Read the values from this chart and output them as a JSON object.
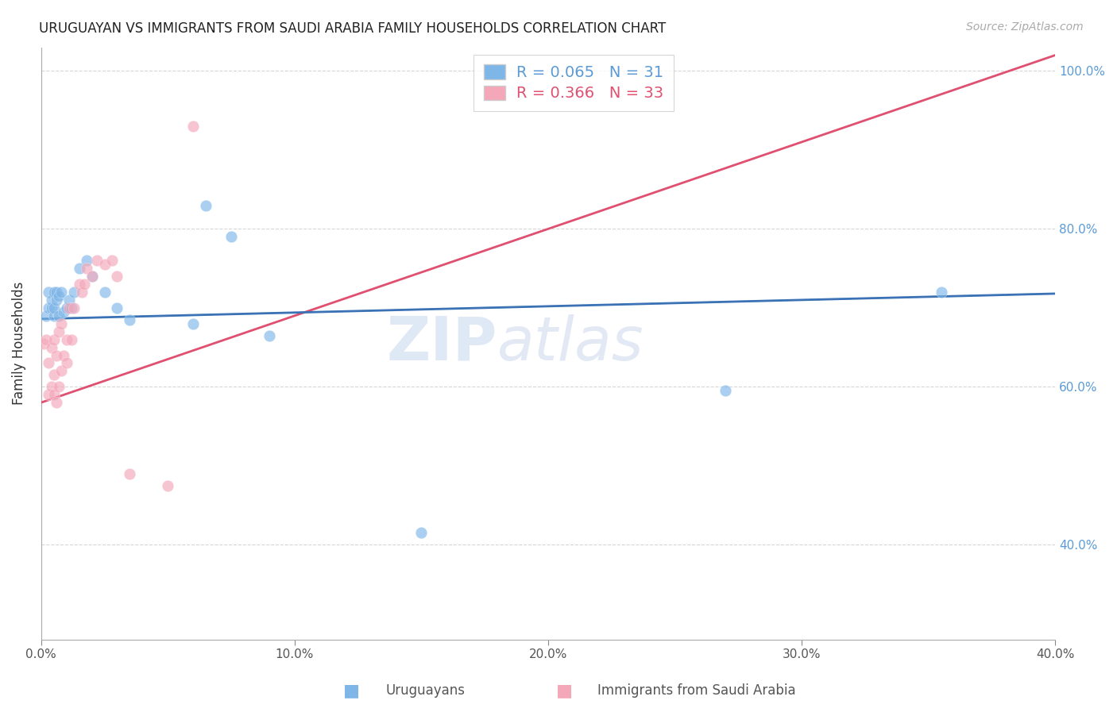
{
  "title": "URUGUAYAN VS IMMIGRANTS FROM SAUDI ARABIA FAMILY HOUSEHOLDS CORRELATION CHART",
  "source_text": "Source: ZipAtlas.com",
  "ylabel": "Family Households",
  "xlabel_uruguayan": "Uruguayans",
  "xlabel_saudi": "Immigrants from Saudi Arabia",
  "xlim": [
    0.0,
    0.4
  ],
  "ylim": [
    0.28,
    1.03
  ],
  "yticks": [
    0.4,
    0.6,
    0.8,
    1.0
  ],
  "ytick_labels": [
    "40.0%",
    "60.0%",
    "80.0%",
    "100.0%"
  ],
  "xticks": [
    0.0,
    0.1,
    0.2,
    0.3,
    0.4
  ],
  "xtick_labels": [
    "0.0%",
    "10.0%",
    "20.0%",
    "30.0%",
    "40.0%"
  ],
  "r_uruguayan": 0.065,
  "n_uruguayan": 31,
  "r_saudi": 0.366,
  "n_saudi": 33,
  "color_uruguayan": "#7EB6E8",
  "color_saudi": "#F4A7B9",
  "line_color_uruguayan": "#3A72B5",
  "line_color_saudi": "#E05070",
  "watermark_zip": "ZIP",
  "watermark_atlas": "atlas",
  "uruguayan_x": [
    0.002,
    0.003,
    0.003,
    0.004,
    0.004,
    0.005,
    0.005,
    0.005,
    0.006,
    0.006,
    0.007,
    0.007,
    0.008,
    0.009,
    0.01,
    0.011,
    0.012,
    0.013,
    0.015,
    0.018,
    0.02,
    0.025,
    0.03,
    0.035,
    0.06,
    0.065,
    0.075,
    0.09,
    0.15,
    0.27,
    0.355
  ],
  "uruguayan_y": [
    0.69,
    0.72,
    0.7,
    0.7,
    0.71,
    0.69,
    0.72,
    0.7,
    0.71,
    0.72,
    0.715,
    0.69,
    0.72,
    0.695,
    0.7,
    0.71,
    0.7,
    0.72,
    0.75,
    0.76,
    0.74,
    0.72,
    0.7,
    0.685,
    0.68,
    0.83,
    0.79,
    0.665,
    0.415,
    0.595,
    0.72
  ],
  "saudi_x": [
    0.001,
    0.002,
    0.003,
    0.003,
    0.004,
    0.004,
    0.005,
    0.005,
    0.005,
    0.006,
    0.006,
    0.007,
    0.007,
    0.008,
    0.008,
    0.009,
    0.01,
    0.01,
    0.011,
    0.012,
    0.013,
    0.015,
    0.016,
    0.017,
    0.018,
    0.02,
    0.022,
    0.025,
    0.028,
    0.03,
    0.035,
    0.05,
    0.06
  ],
  "saudi_y": [
    0.655,
    0.66,
    0.63,
    0.59,
    0.6,
    0.65,
    0.59,
    0.615,
    0.66,
    0.58,
    0.64,
    0.6,
    0.67,
    0.62,
    0.68,
    0.64,
    0.63,
    0.66,
    0.7,
    0.66,
    0.7,
    0.73,
    0.72,
    0.73,
    0.75,
    0.74,
    0.76,
    0.755,
    0.76,
    0.74,
    0.49,
    0.475,
    0.93
  ],
  "uru_trend": [
    0.686,
    0.718
  ],
  "sau_trend": [
    0.58,
    1.02
  ]
}
